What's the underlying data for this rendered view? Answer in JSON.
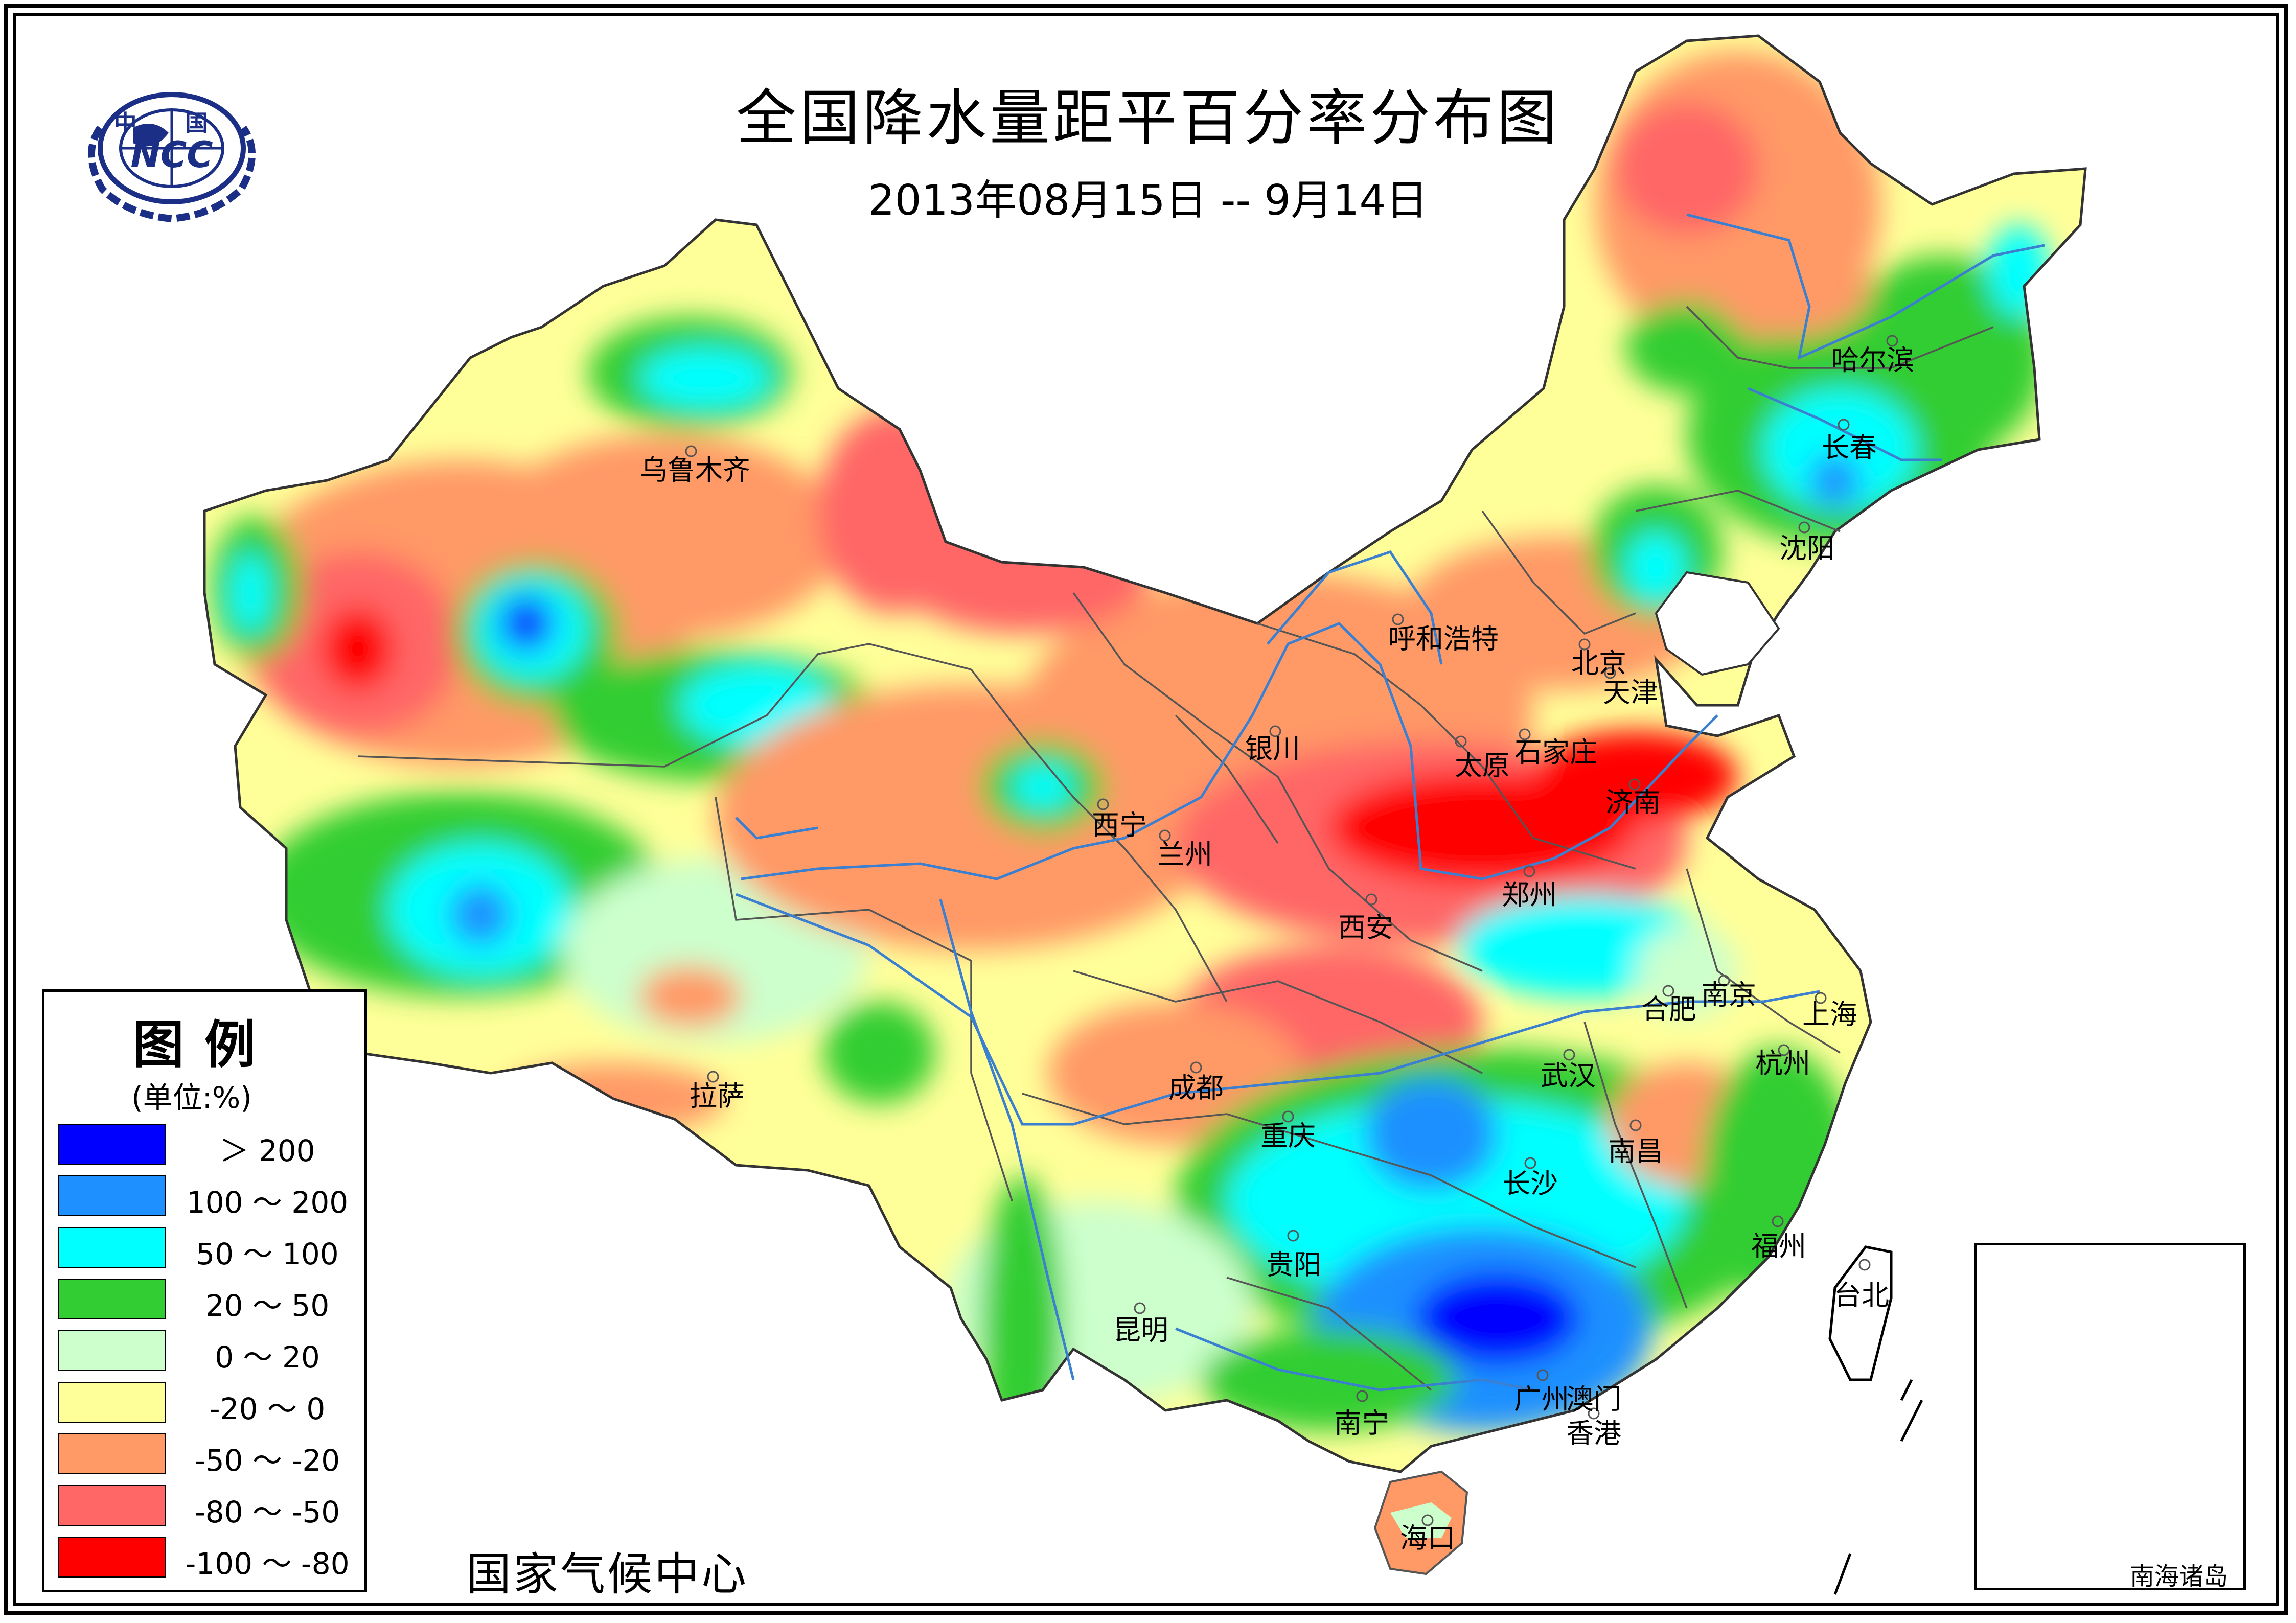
{
  "title": "全国降水量距平百分率分布图",
  "subtitle": "2013年08月15日 -- 9月14日",
  "agency": "国家气候中心",
  "logo": {
    "top_text": "中  国",
    "emblem_text": "NCC",
    "color": "#1b2f86"
  },
  "legend": {
    "title": "图例",
    "unit": "(单位:%)",
    "items": [
      {
        "label": "＞ 200",
        "color": "#0000ff"
      },
      {
        "label": "100 ～ 200",
        "color": "#1e90ff"
      },
      {
        "label": "50 ～ 100",
        "color": "#00ffff"
      },
      {
        "label": "20 ～ 50",
        "color": "#32cd32"
      },
      {
        "label": "0 ～ 20",
        "color": "#ccffcc"
      },
      {
        "label": "-20 ～ 0",
        "color": "#ffff99"
      },
      {
        "label": "-50 ～ -20",
        "color": "#ff9966"
      },
      {
        "label": "-80 ～ -50",
        "color": "#ff6666"
      },
      {
        "label": "-100 ～ -80",
        "color": "#ff0000"
      }
    ]
  },
  "cities": {
    "urumqi": "乌鲁木齐",
    "huhehaote": "呼和浩特",
    "harbin": "哈尔滨",
    "changchun": "长春",
    "shenyang": "沈阳",
    "beijing": "北京",
    "tianjin": "天津",
    "yinchuan": "银川",
    "taiyuan": "太原",
    "shijiazhuang": "石家庄",
    "jinan": "济南",
    "xining": "西宁",
    "lanzhou": "兰州",
    "xian": "西安",
    "zhengzhou": "郑州",
    "hefei": "合肥",
    "nanjing": "南京",
    "shanghai": "上海",
    "lhasa": "拉萨",
    "chengdu": "成都",
    "wuhan": "武汉",
    "hangzhou": "杭州",
    "chongqing": "重庆",
    "nanchang": "南昌",
    "changsha": "长沙",
    "guiyang": "贵阳",
    "fuzhou": "福州",
    "taipei": "台北",
    "kunming": "昆明",
    "guangzhou": "广州",
    "macau": "澳门",
    "nanning": "南宁",
    "hongkong": "香港",
    "haikou": "海口"
  },
  "inset": {
    "label": "南海诸岛"
  }
}
